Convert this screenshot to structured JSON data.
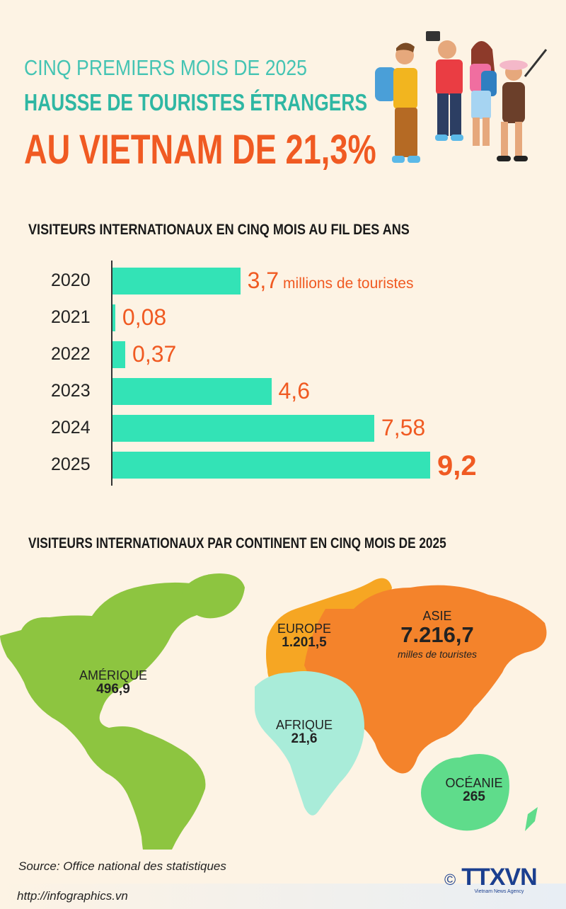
{
  "header": {
    "line1": "CINQ PREMIERS MOIS DE 2025",
    "line2": "HAUSSE DE TOURISTES ÉTRANGERS",
    "line3": "AU VIETNAM DE 21,3%"
  },
  "chart_data": [
    {
      "type": "bar",
      "orientation": "horizontal",
      "title": "VISITEURS INTERNATIONAUX EN CINQ MOIS AU FIL DES ANS",
      "categories": [
        "2020",
        "2021",
        "2022",
        "2023",
        "2024",
        "2025"
      ],
      "values": [
        3.7,
        0.08,
        0.37,
        4.6,
        7.58,
        9.2
      ],
      "value_labels": [
        "3,7",
        "0,08",
        "0,37",
        "4,6",
        "7,58",
        "9,2"
      ],
      "unit_label": "millions de touristes",
      "bar_color": "#33e3b6",
      "label_color": "#f05a22",
      "xlim": [
        0,
        9.2
      ]
    },
    {
      "type": "map",
      "title": "VISITEURS INTERNATIONAUX PAR CONTINENT EN CINQ MOIS DE 2025",
      "regions": [
        {
          "name": "AMÉRIQUE",
          "value": "496,9",
          "color": "#8dc540"
        },
        {
          "name": "EUROPE",
          "value": "1.201,5",
          "color": "#f6a623"
        },
        {
          "name": "ASIE",
          "value": "7.216,7",
          "unit": "milles de touristes",
          "color": "#f4832b"
        },
        {
          "name": "AFRIQUE",
          "value": "21,6",
          "color": "#a9ecd9"
        },
        {
          "name": "OCÉANIE",
          "value": "265",
          "color": "#5fdc8b"
        }
      ]
    }
  ],
  "footer": {
    "source": "Source: Office national des statistiques",
    "url": "http://infographics.vn",
    "logo_text": "TTXVN",
    "logo_sub": "Vietnam News Agency",
    "copyright": "©"
  }
}
